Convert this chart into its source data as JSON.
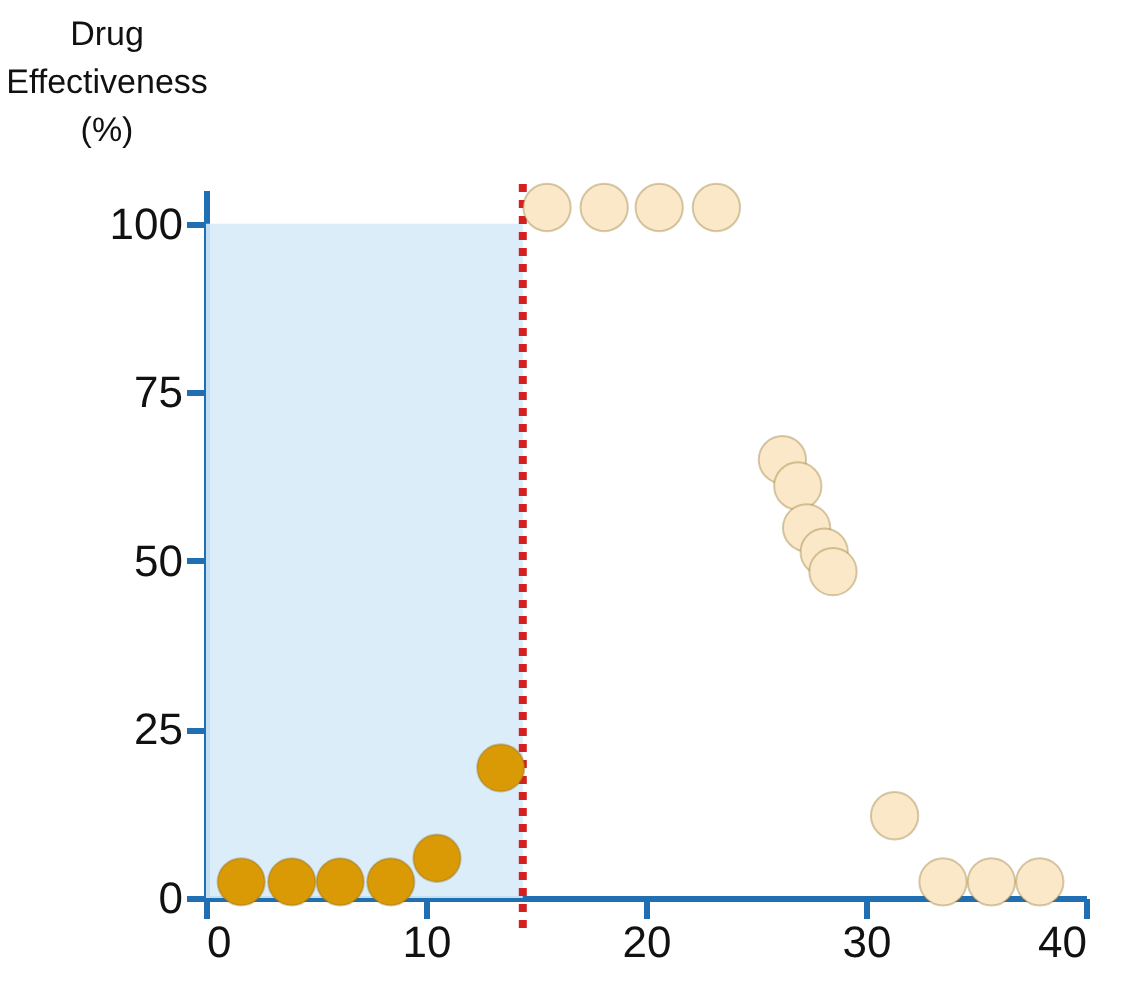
{
  "chart_data": {
    "type": "scatter",
    "ylabel": "Drug\nEffectiveness\n(%)",
    "series": [
      {
        "color": "#d99a06",
        "x": [
          1.6,
          3.9,
          6.1,
          8.4,
          10.5,
          13.4
        ],
        "values": [
          2.4,
          2.4,
          2.4,
          2.4,
          5.9,
          19.3
        ]
      },
      {
        "color": "#fbe8c8",
        "x": [
          15.5,
          18.1,
          20.6,
          23.2,
          26.2,
          26.9,
          27.3,
          28.1,
          28.5,
          31.3,
          33.5,
          35.7,
          37.9
        ],
        "values": [
          102.4,
          102.4,
          102.4,
          102.4,
          65.0,
          61.1,
          54.9,
          51.3,
          48.4,
          12.2,
          2.4,
          2.4,
          2.4
        ]
      }
    ],
    "xlim": [
      0,
      40
    ],
    "xticks": [
      0,
      10,
      20,
      30,
      40
    ],
    "ylim": [
      0,
      105
    ],
    "yticks": [
      0,
      25,
      50,
      75,
      100
    ],
    "bands": [
      {
        "axis": "x",
        "from": 0,
        "to": 14.4,
        "color": "#d6ebf8"
      }
    ],
    "ref_lines": [
      {
        "axis": "x",
        "value": 14.4,
        "color": "#d42020",
        "line_style": "dotted"
      }
    ],
    "marker": "circle",
    "grid": false
  }
}
